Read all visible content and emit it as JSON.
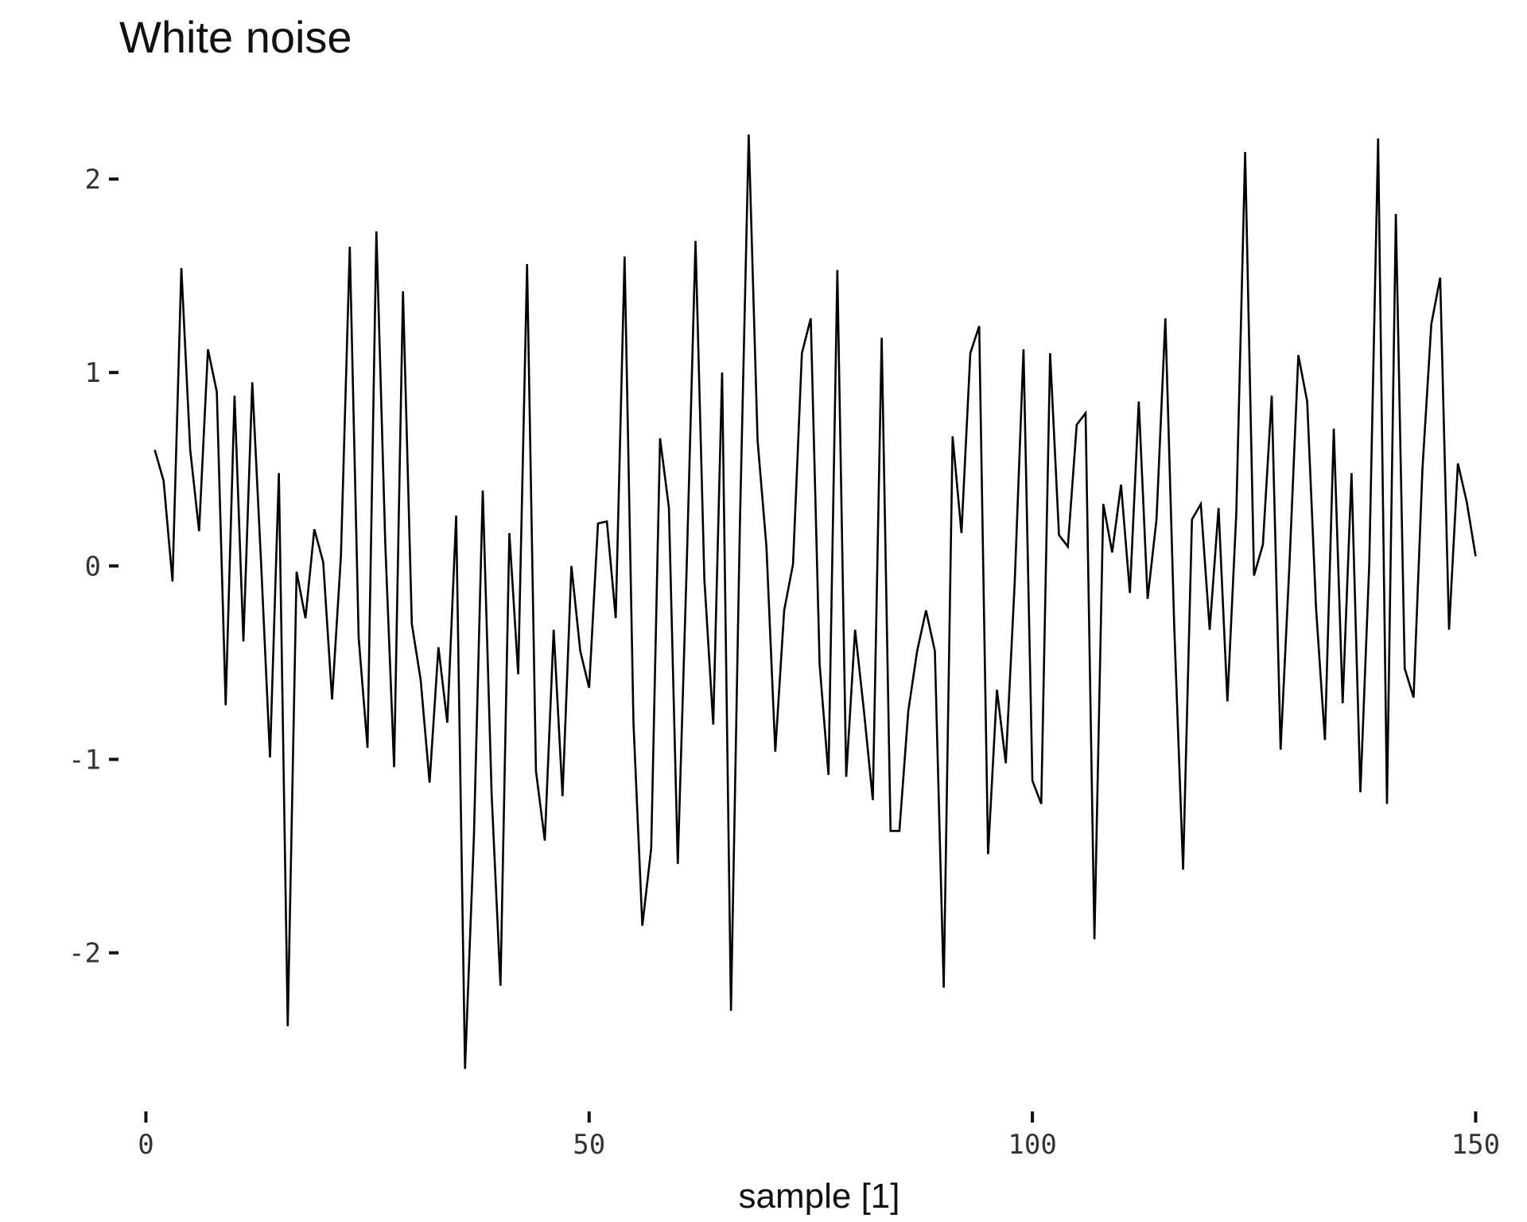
{
  "chart_data": {
    "type": "line",
    "title": "White noise",
    "xlabel": "sample [1]",
    "ylabel": "",
    "xlim": [
      -3,
      154
    ],
    "ylim": [
      -2.75,
      2.35
    ],
    "x_ticks": [
      0,
      50,
      100,
      150
    ],
    "x_tick_labels": [
      "0",
      "50",
      "100",
      "150"
    ],
    "y_ticks": [
      -2,
      -1,
      0,
      1,
      2
    ],
    "y_tick_labels": [
      "-2",
      "-1",
      "0",
      "1",
      "2"
    ],
    "grid": false,
    "legend": "none",
    "line_color": "#000000",
    "x_start": 1,
    "values": [
      0.6,
      0.44,
      -0.08,
      1.54,
      0.6,
      0.18,
      1.12,
      0.9,
      -0.72,
      0.88,
      -0.39,
      0.95,
      0.01,
      -0.99,
      0.48,
      -2.38,
      -0.03,
      -0.27,
      0.19,
      0.02,
      -0.69,
      0.05,
      1.65,
      -0.37,
      -0.94,
      1.73,
      0.12,
      -1.04,
      1.42,
      -0.3,
      -0.59,
      -1.12,
      -0.42,
      -0.81,
      0.26,
      -2.6,
      -1.4,
      0.39,
      -1.18,
      -2.17,
      0.17,
      -0.56,
      1.56,
      -1.06,
      -1.42,
      -0.33,
      -1.19,
      0.0,
      -0.44,
      -0.63,
      0.22,
      0.23,
      -0.27,
      1.6,
      -0.81,
      -1.86,
      -1.46,
      0.66,
      0.3,
      -1.54,
      -0.01,
      1.68,
      -0.07,
      -0.82,
      1.0,
      -2.3,
      0.2,
      2.23,
      0.65,
      0.1,
      -0.96,
      -0.23,
      0.01,
      1.1,
      1.28,
      -0.51,
      -1.08,
      1.53,
      -1.09,
      -0.33,
      -0.75,
      -1.21,
      1.18,
      -1.37,
      -1.37,
      -0.75,
      -0.44,
      -0.23,
      -0.44,
      -2.18,
      0.67,
      0.17,
      1.1,
      1.24,
      -1.49,
      -0.64,
      -1.02,
      -0.09,
      1.12,
      -1.11,
      -1.23,
      1.1,
      0.16,
      0.1,
      0.73,
      0.79,
      -1.93,
      0.32,
      0.07,
      0.42,
      -0.14,
      0.85,
      -0.17,
      0.24,
      1.28,
      -0.31,
      -1.57,
      0.24,
      0.32,
      -0.33,
      0.3,
      -0.7,
      0.27,
      2.14,
      -0.05,
      0.11,
      0.88,
      -0.95,
      0.01,
      1.09,
      0.85,
      -0.22,
      -0.9,
      0.71,
      -0.71,
      0.48,
      -1.17,
      0.01,
      2.21,
      -1.23,
      1.82,
      -0.53,
      -0.68,
      0.5,
      1.25,
      1.49,
      -0.33,
      0.53,
      0.33,
      0.05
    ]
  }
}
